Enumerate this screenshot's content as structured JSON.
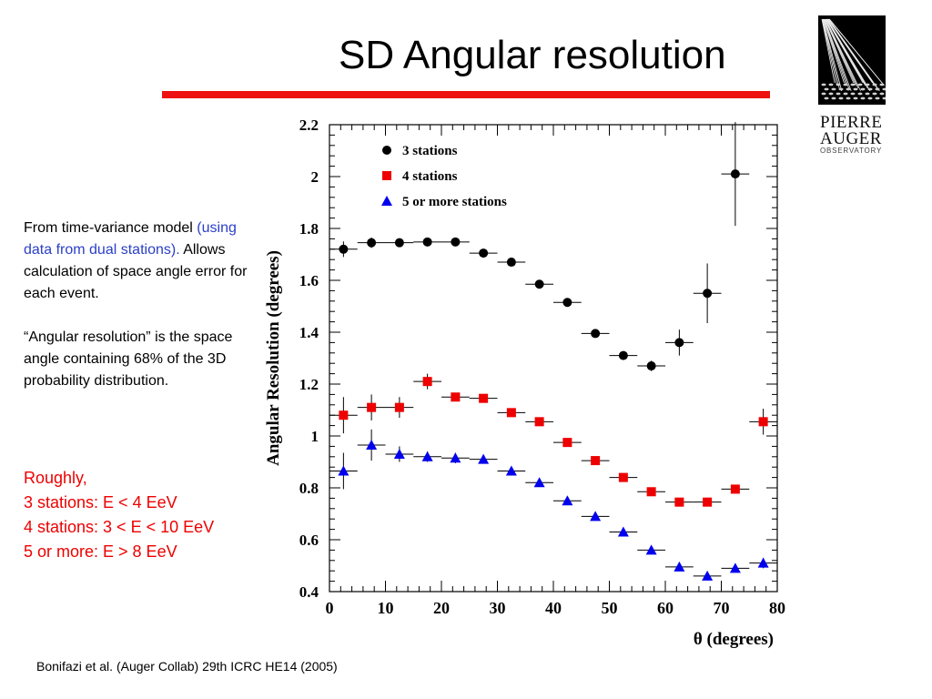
{
  "slide": {
    "title": "SD Angular resolution",
    "accent_color": "#ee1111",
    "logo": {
      "line1": "PIERRE",
      "line2": "AUGER",
      "line3": "OBSERVATORY"
    },
    "description": {
      "p1_plain_a": "From time-variance model ",
      "p1_blue": "(using data from dual stations).",
      "p1_plain_b": "  Allows calculation of space angle error for each event.",
      "p2": "“Angular resolution” is the space angle containing 68% of the 3D probability distribution."
    },
    "energy_notes": [
      "Roughly,",
      "3 stations: E < 4 EeV",
      "4 stations: 3 < E < 10 EeV",
      "5 or more: E > 8 EeV"
    ],
    "citation": "Bonifazi et al. (Auger Collab) 29th ICRC HE14 (2005)"
  },
  "chart_data": {
    "type": "scatter",
    "xlabel": "θ (degrees)",
    "ylabel": "Angular Resolution (degrees)",
    "xlim": [
      0,
      80
    ],
    "ylim": [
      0.4,
      2.2
    ],
    "xticks": [
      "0",
      "10",
      "20",
      "30",
      "40",
      "50",
      "60",
      "70",
      "80"
    ],
    "yticks": [
      "0.4",
      "0.6",
      "0.8",
      "1",
      "1.2",
      "1.4",
      "1.6",
      "1.8",
      "2",
      "2.2"
    ],
    "legend_position": "top-left",
    "series": [
      {
        "name": "3 stations",
        "marker": "circle",
        "color": "#000000",
        "x": [
          2.5,
          7.5,
          12.5,
          17.5,
          22.5,
          27.5,
          32.5,
          37.5,
          42.5,
          47.5,
          52.5,
          57.5,
          62.5,
          67.5,
          72.5
        ],
        "y": [
          1.72,
          1.745,
          1.745,
          1.748,
          1.748,
          1.705,
          1.67,
          1.585,
          1.515,
          1.395,
          1.31,
          1.27,
          1.36,
          1.55,
          2.01
        ],
        "err": [
          0.03,
          0.02,
          0.01,
          0.01,
          0.01,
          0.01,
          0.01,
          0.01,
          0.01,
          0.01,
          0.01,
          0.02,
          0.05,
          0.115,
          0.2
        ]
      },
      {
        "name": "4 stations",
        "marker": "square",
        "color": "#ee0000",
        "x": [
          2.5,
          7.5,
          12.5,
          17.5,
          22.5,
          27.5,
          32.5,
          37.5,
          42.5,
          47.5,
          52.5,
          57.5,
          62.5,
          67.5,
          72.5,
          77.5
        ],
        "y": [
          1.08,
          1.11,
          1.11,
          1.21,
          1.15,
          1.145,
          1.09,
          1.055,
          0.975,
          0.905,
          0.84,
          0.785,
          0.745,
          0.745,
          0.795,
          1.055
        ],
        "err": [
          0.07,
          0.05,
          0.04,
          0.03,
          0.01,
          0.01,
          0.01,
          0.01,
          0.01,
          0.01,
          0.01,
          0.01,
          0.01,
          0.01,
          0.01,
          0.05
        ]
      },
      {
        "name": "5 or more stations",
        "marker": "triangle",
        "color": "#0000ee",
        "x": [
          2.5,
          7.5,
          12.5,
          17.5,
          22.5,
          27.5,
          32.5,
          37.5,
          42.5,
          47.5,
          52.5,
          57.5,
          62.5,
          67.5,
          72.5,
          77.5
        ],
        "y": [
          0.865,
          0.965,
          0.93,
          0.92,
          0.915,
          0.91,
          0.865,
          0.82,
          0.75,
          0.69,
          0.63,
          0.56,
          0.495,
          0.46,
          0.49,
          0.51
        ],
        "err": [
          0.07,
          0.06,
          0.03,
          0.02,
          0.02,
          0.01,
          0.01,
          0.01,
          0.01,
          0.01,
          0.01,
          0.01,
          0.01,
          0.01,
          0.01,
          0.02
        ]
      }
    ]
  }
}
